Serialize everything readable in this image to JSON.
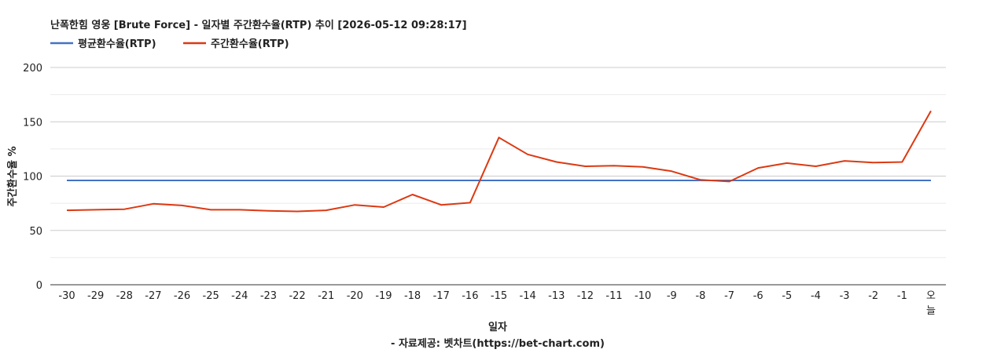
{
  "chart_data": {
    "type": "line",
    "title": "난폭한힘 영웅 [Brute Force] - 일자별 주간환수율(RTP) 추이 [2026-05-12 09:28:17]",
    "xlabel": "일자",
    "ylabel": "주간환수율 %",
    "footer": "- 자료제공: 벳차트(https://bet-chart.com)",
    "ylim": [
      0,
      200
    ],
    "yticks": [
      0,
      50,
      100,
      150,
      200
    ],
    "grid": true,
    "legend_position": "top-left",
    "categories": [
      "-30",
      "-29",
      "-28",
      "-27",
      "-26",
      "-25",
      "-24",
      "-23",
      "-22",
      "-21",
      "-20",
      "-19",
      "-18",
      "-17",
      "-16",
      "-15",
      "-14",
      "-13",
      "-12",
      "-11",
      "-10",
      "-9",
      "-8",
      "-7",
      "-6",
      "-5",
      "-4",
      "-3",
      "-2",
      "-1",
      "오늘"
    ],
    "series": [
      {
        "name": "평균환수율(RTP)",
        "color": "#4472c4",
        "values": [
          96,
          96,
          96,
          96,
          96,
          96,
          96,
          96,
          96,
          96,
          96,
          96,
          96,
          96,
          96,
          96,
          96,
          96,
          96,
          96,
          96,
          96,
          96,
          96,
          96,
          96,
          96,
          96,
          96,
          96,
          96
        ]
      },
      {
        "name": "주간환수율(RTP)",
        "color": "#dc3912",
        "values": [
          68.5,
          69,
          69.5,
          74.5,
          73,
          69,
          69,
          68,
          67.5,
          68.5,
          73.5,
          71.5,
          83,
          73.5,
          75.5,
          135.5,
          120,
          113,
          109,
          109.5,
          108.5,
          104.5,
          96.5,
          95,
          107.5,
          112,
          109,
          114,
          112.5,
          113,
          160
        ]
      }
    ]
  }
}
